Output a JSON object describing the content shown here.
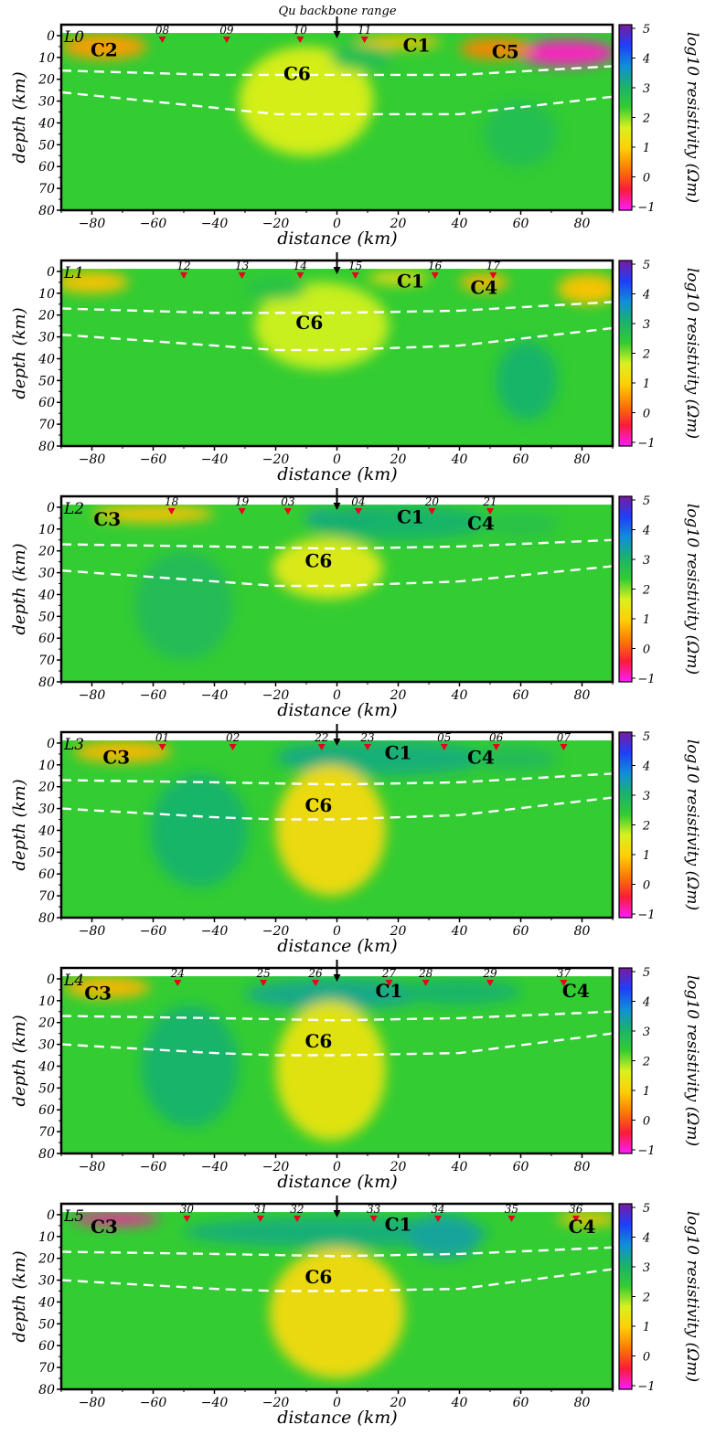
{
  "figure": {
    "top_annotation": "Qu backbone range",
    "x_label": "distance (km)",
    "y_label": "depth (km)",
    "colorbar_label": "log10 resistivity (Ωm)",
    "colorbar_ticks": [
      "5",
      "4",
      "3",
      "2",
      "1",
      "0",
      "−1"
    ],
    "x_tick_labels": [
      "−80",
      "−60",
      "−40",
      "−20",
      "0",
      "20",
      "40",
      "60",
      "80"
    ],
    "y_tick_labels": [
      "0",
      "10",
      "20",
      "30",
      "40",
      "50",
      "60",
      "70",
      "80"
    ],
    "colors": {
      "background_resistivity": "#33cc33",
      "station_marker": "#e8001c",
      "boundary_line": "#ffffff",
      "colorbar_stops": [
        "#ff1aff",
        "#ff1a3a",
        "#ff7a00",
        "#ffd000",
        "#d9f21a",
        "#33cc33",
        "#19b36b",
        "#0f8fd9",
        "#1f3dff",
        "#7a1a9e"
      ]
    }
  },
  "chart_data": [
    {
      "type": "heatmap",
      "title": "L0",
      "xlabel": "distance (km)",
      "ylabel": "depth (km)",
      "xlim": [
        -90,
        90
      ],
      "ylim": [
        80,
        -5
      ],
      "colorscale_range": [
        -1,
        5
      ],
      "stations": [
        {
          "label": "08",
          "x": -57
        },
        {
          "label": "09",
          "x": -36
        },
        {
          "label": "10",
          "x": -12
        },
        {
          "label": "11",
          "x": 9
        }
      ],
      "conductors": [
        {
          "label": "C2",
          "x": -76,
          "depth": 6
        },
        {
          "label": "C1",
          "x": 26,
          "depth": 4
        },
        {
          "label": "C5",
          "x": 55,
          "depth": 7
        },
        {
          "label": "C6",
          "x": -13,
          "depth": 17
        }
      ],
      "moho_upper": [
        [
          -90,
          16
        ],
        [
          -40,
          18
        ],
        [
          0,
          18
        ],
        [
          40,
          18
        ],
        [
          90,
          14
        ]
      ],
      "moho_lower": [
        [
          -90,
          26
        ],
        [
          -40,
          33
        ],
        [
          -20,
          36
        ],
        [
          0,
          36
        ],
        [
          40,
          36
        ],
        [
          90,
          28
        ]
      ],
      "anomalies": [
        {
          "x": -76,
          "depth": 5,
          "rx": 14,
          "ry": 6,
          "value": 0.6
        },
        {
          "x": 75,
          "depth": 8,
          "rx": 16,
          "ry": 6,
          "value": -0.8
        },
        {
          "x": 52,
          "depth": 6,
          "rx": 12,
          "ry": 5,
          "value": 0.4
        },
        {
          "x": 20,
          "depth": 3,
          "rx": 14,
          "ry": 3,
          "value": 0.9
        },
        {
          "x": -10,
          "depth": 30,
          "rx": 22,
          "ry": 25,
          "value": 1.6
        },
        {
          "x": 60,
          "depth": 45,
          "rx": 12,
          "ry": 15,
          "value": 2.7
        },
        {
          "x": 8,
          "depth": 10,
          "rx": 10,
          "ry": 6,
          "value": 2.7
        }
      ]
    },
    {
      "type": "heatmap",
      "title": "L1",
      "xlabel": "distance (km)",
      "ylabel": "depth (km)",
      "xlim": [
        -90,
        90
      ],
      "ylim": [
        80,
        -5
      ],
      "colorscale_range": [
        -1,
        5
      ],
      "stations": [
        {
          "label": "12",
          "x": -50
        },
        {
          "label": "13",
          "x": -31
        },
        {
          "label": "14",
          "x": -12
        },
        {
          "label": "15",
          "x": 6
        },
        {
          "label": "16",
          "x": 32
        },
        {
          "label": "17",
          "x": 51
        }
      ],
      "conductors": [
        {
          "label": "C1",
          "x": 24,
          "depth": 4
        },
        {
          "label": "C4",
          "x": 48,
          "depth": 7
        },
        {
          "label": "C6",
          "x": -9,
          "depth": 23
        }
      ],
      "moho_upper": [
        [
          -90,
          17
        ],
        [
          -40,
          19
        ],
        [
          0,
          19
        ],
        [
          40,
          18
        ],
        [
          90,
          14
        ]
      ],
      "moho_lower": [
        [
          -90,
          29
        ],
        [
          -40,
          34
        ],
        [
          -20,
          36
        ],
        [
          0,
          36
        ],
        [
          40,
          34
        ],
        [
          90,
          26
        ]
      ],
      "anomalies": [
        {
          "x": -80,
          "depth": 5,
          "rx": 12,
          "ry": 5,
          "value": 0.9
        },
        {
          "x": 82,
          "depth": 8,
          "rx": 10,
          "ry": 7,
          "value": 0.9
        },
        {
          "x": 48,
          "depth": 5,
          "rx": 8,
          "ry": 4,
          "value": 0.8
        },
        {
          "x": 20,
          "depth": 3,
          "rx": 10,
          "ry": 3,
          "value": 1.2
        },
        {
          "x": -5,
          "depth": 25,
          "rx": 22,
          "ry": 20,
          "value": 1.7
        },
        {
          "x": 62,
          "depth": 50,
          "rx": 10,
          "ry": 18,
          "value": 3.0
        },
        {
          "x": -20,
          "depth": 8,
          "rx": 10,
          "ry": 5,
          "value": 2.6
        }
      ]
    },
    {
      "type": "heatmap",
      "title": "L2",
      "xlabel": "distance (km)",
      "ylabel": "depth (km)",
      "xlim": [
        -90,
        90
      ],
      "ylim": [
        80,
        -5
      ],
      "colorscale_range": [
        -1,
        5
      ],
      "stations": [
        {
          "label": "18",
          "x": -54
        },
        {
          "label": "19",
          "x": -31
        },
        {
          "label": "03",
          "x": -16
        },
        {
          "label": "04",
          "x": 7
        },
        {
          "label": "20",
          "x": 31
        },
        {
          "label": "21",
          "x": 50
        }
      ],
      "conductors": [
        {
          "label": "C3",
          "x": -75,
          "depth": 5
        },
        {
          "label": "C1",
          "x": 24,
          "depth": 4
        },
        {
          "label": "C4",
          "x": 47,
          "depth": 7
        },
        {
          "label": "C6",
          "x": -6,
          "depth": 24
        }
      ],
      "moho_upper": [
        [
          -90,
          17
        ],
        [
          -40,
          18
        ],
        [
          0,
          19
        ],
        [
          40,
          18
        ],
        [
          90,
          15
        ]
      ],
      "moho_lower": [
        [
          -90,
          29
        ],
        [
          -40,
          34
        ],
        [
          -20,
          36
        ],
        [
          0,
          36
        ],
        [
          40,
          34
        ],
        [
          90,
          27
        ]
      ],
      "anomalies": [
        {
          "x": -60,
          "depth": 3,
          "rx": 20,
          "ry": 4,
          "value": 0.9
        },
        {
          "x": 2,
          "depth": 5,
          "rx": 12,
          "ry": 4,
          "value": 4.2
        },
        {
          "x": 20,
          "depth": 7,
          "rx": 30,
          "ry": 8,
          "value": 3.0
        },
        {
          "x": -3,
          "depth": 28,
          "rx": 18,
          "ry": 14,
          "value": 1.5
        },
        {
          "x": -50,
          "depth": 45,
          "rx": 16,
          "ry": 25,
          "value": 2.8
        },
        {
          "x": 60,
          "depth": 8,
          "rx": 12,
          "ry": 6,
          "value": 2.6
        }
      ]
    },
    {
      "type": "heatmap",
      "title": "L3",
      "xlabel": "distance (km)",
      "ylabel": "depth (km)",
      "xlim": [
        -90,
        90
      ],
      "ylim": [
        80,
        -5
      ],
      "colorscale_range": [
        -1,
        5
      ],
      "stations": [
        {
          "label": "01",
          "x": -57
        },
        {
          "label": "02",
          "x": -34
        },
        {
          "label": "22",
          "x": -5
        },
        {
          "label": "23",
          "x": 10
        },
        {
          "label": "05",
          "x": 35
        },
        {
          "label": "06",
          "x": 52
        },
        {
          "label": "07",
          "x": 74
        }
      ],
      "conductors": [
        {
          "label": "C3",
          "x": -72,
          "depth": 6
        },
        {
          "label": "C1",
          "x": 20,
          "depth": 4
        },
        {
          "label": "C4",
          "x": 47,
          "depth": 6
        },
        {
          "label": "C6",
          "x": -6,
          "depth": 28
        }
      ],
      "moho_upper": [
        [
          -90,
          17
        ],
        [
          -40,
          18
        ],
        [
          0,
          19
        ],
        [
          40,
          18
        ],
        [
          90,
          14
        ]
      ],
      "moho_lower": [
        [
          -90,
          30
        ],
        [
          -40,
          34
        ],
        [
          -20,
          35
        ],
        [
          0,
          35
        ],
        [
          40,
          33
        ],
        [
          90,
          25
        ]
      ],
      "anomalies": [
        {
          "x": -70,
          "depth": 4,
          "rx": 16,
          "ry": 5,
          "value": 0.8
        },
        {
          "x": -6,
          "depth": 5,
          "rx": 12,
          "ry": 4,
          "value": 3.9
        },
        {
          "x": 15,
          "depth": 7,
          "rx": 35,
          "ry": 8,
          "value": 3.1
        },
        {
          "x": -2,
          "depth": 40,
          "rx": 18,
          "ry": 30,
          "value": 1.2
        },
        {
          "x": -45,
          "depth": 40,
          "rx": 16,
          "ry": 26,
          "value": 3.0
        },
        {
          "x": 58,
          "depth": 7,
          "rx": 14,
          "ry": 6,
          "value": 2.8
        }
      ]
    },
    {
      "type": "heatmap",
      "title": "L4",
      "xlabel": "distance (km)",
      "ylabel": "depth (km)",
      "xlim": [
        -90,
        90
      ],
      "ylim": [
        80,
        -5
      ],
      "colorscale_range": [
        -1,
        5
      ],
      "stations": [
        {
          "label": "24",
          "x": -52
        },
        {
          "label": "25",
          "x": -24
        },
        {
          "label": "26",
          "x": -7
        },
        {
          "label": "27",
          "x": 17
        },
        {
          "label": "28",
          "x": 29
        },
        {
          "label": "29",
          "x": 50
        },
        {
          "label": "37",
          "x": 74
        }
      ],
      "conductors": [
        {
          "label": "C3",
          "x": -78,
          "depth": 6
        },
        {
          "label": "C1",
          "x": 17,
          "depth": 5
        },
        {
          "label": "C4",
          "x": 78,
          "depth": 5
        },
        {
          "label": "C6",
          "x": -6,
          "depth": 28
        }
      ],
      "moho_upper": [
        [
          -90,
          17
        ],
        [
          -40,
          18
        ],
        [
          0,
          19
        ],
        [
          40,
          18
        ],
        [
          90,
          15
        ]
      ],
      "moho_lower": [
        [
          -90,
          30
        ],
        [
          -40,
          34
        ],
        [
          -20,
          35
        ],
        [
          0,
          35
        ],
        [
          40,
          34
        ],
        [
          90,
          25
        ]
      ],
      "anomalies": [
        {
          "x": -75,
          "depth": 4,
          "rx": 14,
          "ry": 5,
          "value": 0.8
        },
        {
          "x": 0,
          "depth": 7,
          "rx": 30,
          "ry": 7,
          "value": 3.2
        },
        {
          "x": -2,
          "depth": 42,
          "rx": 18,
          "ry": 32,
          "value": 1.4
        },
        {
          "x": -48,
          "depth": 40,
          "rx": 16,
          "ry": 28,
          "value": 3.0
        },
        {
          "x": 40,
          "depth": 6,
          "rx": 20,
          "ry": 6,
          "value": 3.0
        }
      ]
    },
    {
      "type": "heatmap",
      "title": "L5",
      "xlabel": "distance (km)",
      "ylabel": "depth (km)",
      "xlim": [
        -90,
        90
      ],
      "ylim": [
        80,
        -5
      ],
      "colorscale_range": [
        -1,
        5
      ],
      "stations": [
        {
          "label": "30",
          "x": -49
        },
        {
          "label": "31",
          "x": -25
        },
        {
          "label": "32",
          "x": -13
        },
        {
          "label": "33",
          "x": 12
        },
        {
          "label": "34",
          "x": 33
        },
        {
          "label": "35",
          "x": 57
        },
        {
          "label": "36",
          "x": 78
        }
      ],
      "conductors": [
        {
          "label": "C3",
          "x": -76,
          "depth": 5
        },
        {
          "label": "C1",
          "x": 20,
          "depth": 4
        },
        {
          "label": "C4",
          "x": 80,
          "depth": 5
        },
        {
          "label": "C6",
          "x": -6,
          "depth": 28
        }
      ],
      "moho_upper": [
        [
          -90,
          17
        ],
        [
          -40,
          18
        ],
        [
          0,
          19
        ],
        [
          40,
          18
        ],
        [
          90,
          15
        ]
      ],
      "moho_lower": [
        [
          -90,
          30
        ],
        [
          -40,
          34
        ],
        [
          -20,
          35
        ],
        [
          0,
          35
        ],
        [
          40,
          34
        ],
        [
          90,
          25
        ]
      ],
      "anomalies": [
        {
          "x": -72,
          "depth": 2,
          "rx": 14,
          "ry": 3,
          "value": -0.7
        },
        {
          "x": 0,
          "depth": 8,
          "rx": 50,
          "ry": 7,
          "value": 3.1
        },
        {
          "x": 35,
          "depth": 10,
          "rx": 12,
          "ry": 10,
          "value": 3.3
        },
        {
          "x": 0,
          "depth": 45,
          "rx": 22,
          "ry": 30,
          "value": 1.2
        },
        {
          "x": 82,
          "depth": 2,
          "rx": 10,
          "ry": 3,
          "value": 0.9
        }
      ]
    }
  ]
}
